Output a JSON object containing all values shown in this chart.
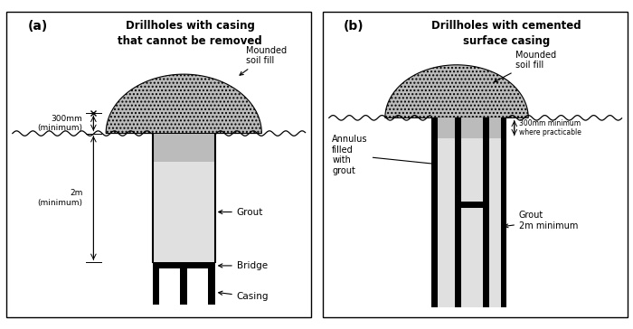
{
  "fig_width": 7.0,
  "fig_height": 3.64,
  "dpi": 100,
  "bg_color": "#ffffff",
  "panel_a": {
    "title_line1": "Drillholes with casing",
    "title_line2": "that cannot be removed",
    "label": "(a)",
    "mounded_soil_fill": "Mounded\nsoil fill",
    "label_300mm": "300mm\n(minimum)",
    "label_2m": "2m\n(minimum)",
    "label_grout": "Grout",
    "label_bridge": "Bridge",
    "label_casing": "Casing"
  },
  "panel_b": {
    "title_line1": "Drillholes with cemented",
    "title_line2": "surface casing",
    "label": "(b)",
    "mounded_soil_fill": "Mounded\nsoil fill",
    "label_300mm": "300mm minimum\nwhere practicable",
    "label_annulus": "Annulus\nfilled\nwith\ngrout",
    "label_grout": "Grout\n2m minimum"
  },
  "soil_fill_color": "#bbbbbb",
  "grout_color": "#d8d8d8",
  "black": "#000000",
  "white": "#ffffff"
}
